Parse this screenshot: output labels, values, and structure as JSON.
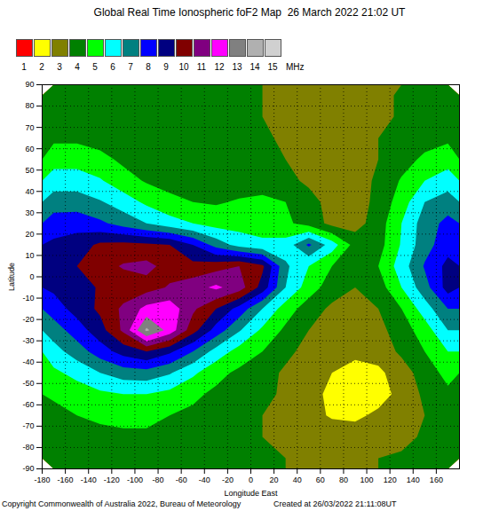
{
  "chart_data": {
    "type": "contour",
    "title": "Global Real Time Ionospheric foF2 Map  26 March 2022 21:02 UT",
    "xlabel": "Longitude East",
    "ylabel": "Latitude",
    "xlim": [
      -180,
      180
    ],
    "ylim": [
      -90,
      90
    ],
    "xticks": [
      -180,
      -160,
      -140,
      -120,
      -100,
      -80,
      -60,
      -40,
      -20,
      0,
      20,
      40,
      60,
      80,
      100,
      120,
      140,
      160
    ],
    "yticks": [
      -90,
      -80,
      -70,
      -60,
      -50,
      -40,
      -30,
      -20,
      -10,
      0,
      10,
      20,
      30,
      40,
      50,
      60,
      70,
      80,
      90
    ],
    "grid": true,
    "x": [
      -170,
      -150,
      -130,
      -110,
      -90,
      -70,
      -50,
      -30,
      -10,
      10,
      30,
      50,
      70,
      90,
      110,
      130,
      150,
      170
    ],
    "y": [
      85,
      75,
      65,
      55,
      45,
      35,
      25,
      15,
      5,
      -5,
      -15,
      -25,
      -35,
      -45,
      -55,
      -65,
      -75,
      -85
    ],
    "values": [
      [
        4.2,
        4.2,
        4.2,
        4.2,
        4.2,
        4.2,
        4.2,
        4.2,
        4.1,
        4,
        3.6,
        3.5,
        3.5,
        3.5,
        3.8,
        4.1,
        4.2,
        4.2
      ],
      [
        4.3,
        4.3,
        4.2,
        4.2,
        4.2,
        4.2,
        4.2,
        4.2,
        4.1,
        4,
        3.6,
        3.5,
        3.5,
        3.5,
        3.8,
        4.1,
        4.2,
        4.3
      ],
      [
        4.8,
        4.8,
        4.6,
        4.3,
        4.2,
        4.2,
        4.2,
        4.2,
        4.2,
        4.1,
        3.9,
        3.6,
        3.5,
        3.6,
        4,
        4.3,
        4.6,
        4.8
      ],
      [
        5.6,
        5.6,
        5.3,
        4.8,
        4.4,
        4.3,
        4.2,
        4.2,
        4.2,
        4.2,
        4,
        3.7,
        3.5,
        3.5,
        4,
        4.6,
        5.2,
        5.6
      ],
      [
        6.5,
        6.5,
        6.1,
        5.4,
        4.9,
        4.6,
        4.4,
        4.5,
        4.5,
        4.6,
        4.3,
        3.8,
        3.5,
        3.5,
        4.2,
        5.1,
        6,
        6.5
      ],
      [
        7.5,
        7.5,
        7.1,
        6.5,
        5.8,
        5.3,
        5,
        4.9,
        5.1,
        5.2,
        5,
        4.4,
        3.6,
        3.5,
        4.3,
        5.5,
        7,
        7.5
      ],
      [
        8.5,
        8.6,
        8.2,
        7.6,
        7,
        6.4,
        6,
        5.6,
        5.6,
        5.6,
        5.2,
        4.6,
        3.7,
        3.6,
        4.5,
        6,
        7.5,
        8.3
      ],
      [
        9.2,
        9.5,
        10.2,
        10.3,
        10.2,
        10,
        9,
        7.6,
        6.6,
        6.2,
        6.4,
        8.2,
        6.5,
        4.6,
        4.6,
        6.1,
        7.6,
        8.6
      ],
      [
        9.3,
        10,
        10.6,
        11.1,
        11.3,
        10.6,
        10.3,
        10.6,
        11,
        10.2,
        7.2,
        6,
        5,
        4.5,
        5,
        6.5,
        8.1,
        9.3
      ],
      [
        9.2,
        9.6,
        10.1,
        10.4,
        10.6,
        11.1,
        11.6,
        12.2,
        11.5,
        9.6,
        7,
        5.5,
        4.5,
        4,
        4.5,
        6,
        7.6,
        9.4
      ],
      [
        8.5,
        9.4,
        10.2,
        11.2,
        12.3,
        12.6,
        11.2,
        10,
        8.6,
        7,
        5.5,
        4.5,
        3.8,
        3.5,
        4,
        5,
        6.5,
        8
      ],
      [
        7.5,
        8.5,
        9.6,
        11.2,
        14.2,
        12.6,
        10.4,
        8.6,
        7.1,
        5.8,
        4.8,
        4,
        3.6,
        3.5,
        3.7,
        4.5,
        5.5,
        7
      ],
      [
        6.6,
        7.5,
        8.5,
        9.4,
        10,
        9.2,
        8,
        6.6,
        5.6,
        5,
        4.3,
        3.6,
        3.4,
        3.2,
        3.4,
        4.2,
        5,
        6
      ],
      [
        5.8,
        6.3,
        7,
        7.5,
        7.6,
        7.1,
        6.2,
        5.3,
        4.8,
        4.5,
        3.8,
        3.4,
        3,
        2.7,
        2.8,
        3.5,
        4.5,
        5.3
      ],
      [
        5.1,
        5.5,
        5.8,
        6,
        6,
        5.7,
        5.2,
        4.8,
        4.5,
        4.3,
        3.8,
        3.3,
        2.8,
        2.5,
        2.6,
        3.3,
        4.2,
        4.8
      ],
      [
        4.8,
        5,
        5.2,
        5.3,
        5.3,
        5,
        4.8,
        4.5,
        4.3,
        4,
        3.8,
        3.3,
        2.9,
        2.8,
        3.2,
        3.6,
        4,
        4.5
      ],
      [
        4.5,
        4.6,
        4.7,
        4.8,
        4.8,
        4.7,
        4.6,
        4.4,
        4.2,
        4,
        3.8,
        3.6,
        3.5,
        3.5,
        3.6,
        3.8,
        4.1,
        4.3
      ],
      [
        4.4,
        4.4,
        4.5,
        4.6,
        4.6,
        4.5,
        4.4,
        4.3,
        4.2,
        4.1,
        4,
        3.9,
        3.9,
        3.9,
        4,
        4.1,
        4.2,
        4.3
      ]
    ],
    "colorbar": {
      "label": "MHz",
      "ticks": [
        1,
        2,
        3,
        4,
        5,
        6,
        7,
        8,
        9,
        10,
        11,
        12,
        13,
        14,
        15
      ],
      "colors": [
        "#ff0000",
        "#ffff00",
        "#808000",
        "#008000",
        "#00ff00",
        "#00ffff",
        "#008080",
        "#0000ff",
        "#000080",
        "#800000",
        "#800080",
        "#ff00ff",
        "#808080",
        "#b0b0b0",
        "#d0d0d0"
      ]
    },
    "footer": [
      "Copyright Commonwealth of Australia 2022, Bureau of Meteorology",
      "Created at 26/03/2022 21:11:08UT"
    ]
  }
}
